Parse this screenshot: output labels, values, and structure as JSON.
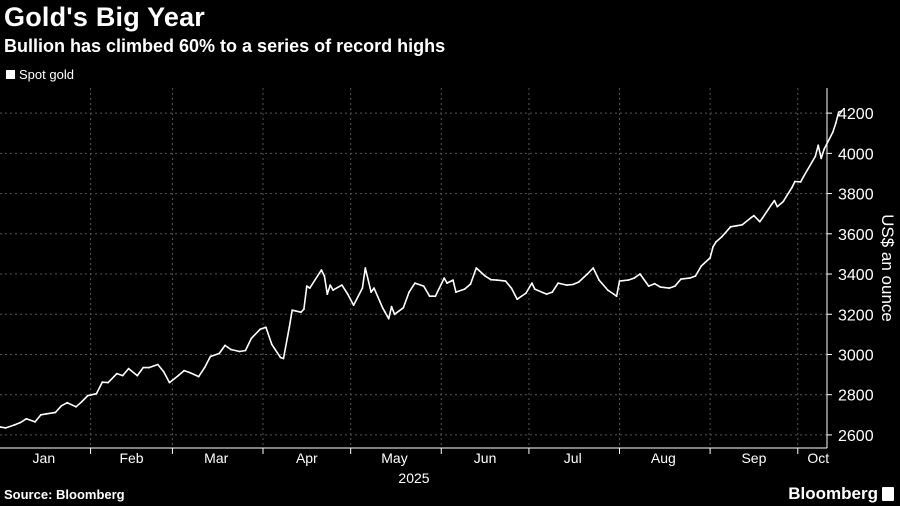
{
  "header": {
    "title": "Gold's Big Year",
    "subtitle": "Bullion has climbed 60% to a series of record highs"
  },
  "footer": {
    "source": "Source: Bloomberg",
    "brand": "Bloomberg",
    "brand_icon": "bloomberg-chart-icon"
  },
  "colors": {
    "background": "#000000",
    "line": "#ffffff",
    "grid": "#555555",
    "text": "#ffffff"
  },
  "chart_data": {
    "type": "line",
    "title": "Gold's Big Year",
    "subtitle": "Bullion has climbed 60% to a series of record highs",
    "xlabel": "2025",
    "ylabel": "US$ an ounce",
    "y_axis_side": "right",
    "ylim": [
      2535,
      4325
    ],
    "yticks": [
      2600,
      2800,
      3000,
      3200,
      3400,
      3600,
      3800,
      4000,
      4200
    ],
    "xlim": [
      "2025-01-01",
      "2025-10-11"
    ],
    "x_tick_labels": [
      {
        "date": "2025-01-16",
        "label": "Jan"
      },
      {
        "date": "2025-02-15",
        "label": "Feb"
      },
      {
        "date": "2025-03-16",
        "label": "Mar"
      },
      {
        "date": "2025-04-16",
        "label": "Apr"
      },
      {
        "date": "2025-05-16",
        "label": "May"
      },
      {
        "date": "2025-06-16",
        "label": "Jun"
      },
      {
        "date": "2025-07-16",
        "label": "Jul"
      },
      {
        "date": "2025-08-16",
        "label": "Aug"
      },
      {
        "date": "2025-09-16",
        "label": "Sep"
      },
      {
        "date": "2025-10-08",
        "label": "Oct"
      }
    ],
    "x_grid_dates": [
      "2025-02-01",
      "2025-03-01",
      "2025-04-01",
      "2025-05-01",
      "2025-06-01",
      "2025-07-01",
      "2025-08-01",
      "2025-09-01",
      "2025-10-01"
    ],
    "grid": true,
    "legend": "top-left",
    "series": [
      {
        "name": "Spot gold",
        "points": [
          [
            "2025-01-01",
            2640
          ],
          [
            "2025-01-03",
            2635
          ],
          [
            "2025-01-06",
            2650
          ],
          [
            "2025-01-08",
            2662
          ],
          [
            "2025-01-10",
            2680
          ],
          [
            "2025-01-13",
            2665
          ],
          [
            "2025-01-15",
            2700
          ],
          [
            "2025-01-17",
            2705
          ],
          [
            "2025-01-20",
            2712
          ],
          [
            "2025-01-22",
            2745
          ],
          [
            "2025-01-24",
            2760
          ],
          [
            "2025-01-27",
            2740
          ],
          [
            "2025-01-29",
            2765
          ],
          [
            "2025-01-31",
            2795
          ],
          [
            "2025-02-03",
            2805
          ],
          [
            "2025-02-05",
            2862
          ],
          [
            "2025-02-07",
            2860
          ],
          [
            "2025-02-10",
            2905
          ],
          [
            "2025-02-12",
            2895
          ],
          [
            "2025-02-14",
            2930
          ],
          [
            "2025-02-17",
            2895
          ],
          [
            "2025-02-19",
            2935
          ],
          [
            "2025-02-21",
            2935
          ],
          [
            "2025-02-24",
            2950
          ],
          [
            "2025-02-26",
            2915
          ],
          [
            "2025-02-28",
            2860
          ],
          [
            "2025-03-03",
            2895
          ],
          [
            "2025-03-05",
            2920
          ],
          [
            "2025-03-07",
            2910
          ],
          [
            "2025-03-10",
            2890
          ],
          [
            "2025-03-12",
            2935
          ],
          [
            "2025-03-14",
            2990
          ],
          [
            "2025-03-17",
            3005
          ],
          [
            "2025-03-19",
            3045
          ],
          [
            "2025-03-21",
            3025
          ],
          [
            "2025-03-24",
            3015
          ],
          [
            "2025-03-26",
            3020
          ],
          [
            "2025-03-28",
            3080
          ],
          [
            "2025-03-31",
            3125
          ],
          [
            "2025-04-02",
            3135
          ],
          [
            "2025-04-04",
            3050
          ],
          [
            "2025-04-07",
            2985
          ],
          [
            "2025-04-08",
            2980
          ],
          [
            "2025-04-10",
            3135
          ],
          [
            "2025-04-11",
            3220
          ],
          [
            "2025-04-14",
            3210
          ],
          [
            "2025-04-15",
            3225
          ],
          [
            "2025-04-16",
            3340
          ],
          [
            "2025-04-17",
            3330
          ],
          [
            "2025-04-21",
            3420
          ],
          [
            "2025-04-22",
            3390
          ],
          [
            "2025-04-23",
            3300
          ],
          [
            "2025-04-24",
            3345
          ],
          [
            "2025-04-25",
            3320
          ],
          [
            "2025-04-28",
            3345
          ],
          [
            "2025-04-30",
            3300
          ],
          [
            "2025-05-02",
            3245
          ],
          [
            "2025-05-05",
            3330
          ],
          [
            "2025-05-06",
            3430
          ],
          [
            "2025-05-08",
            3310
          ],
          [
            "2025-05-09",
            3330
          ],
          [
            "2025-05-12",
            3230
          ],
          [
            "2025-05-14",
            3178
          ],
          [
            "2025-05-15",
            3238
          ],
          [
            "2025-05-16",
            3200
          ],
          [
            "2025-05-19",
            3232
          ],
          [
            "2025-05-21",
            3310
          ],
          [
            "2025-05-23",
            3355
          ],
          [
            "2025-05-26",
            3340
          ],
          [
            "2025-05-28",
            3290
          ],
          [
            "2025-05-30",
            3290
          ],
          [
            "2025-06-02",
            3380
          ],
          [
            "2025-06-03",
            3355
          ],
          [
            "2025-06-05",
            3370
          ],
          [
            "2025-06-06",
            3310
          ],
          [
            "2025-06-09",
            3325
          ],
          [
            "2025-06-11",
            3350
          ],
          [
            "2025-06-13",
            3430
          ],
          [
            "2025-06-16",
            3390
          ],
          [
            "2025-06-18",
            3372
          ],
          [
            "2025-06-20",
            3370
          ],
          [
            "2025-06-23",
            3365
          ],
          [
            "2025-06-25",
            3330
          ],
          [
            "2025-06-27",
            3275
          ],
          [
            "2025-06-30",
            3305
          ],
          [
            "2025-07-02",
            3355
          ],
          [
            "2025-07-03",
            3325
          ],
          [
            "2025-07-07",
            3300
          ],
          [
            "2025-07-09",
            3310
          ],
          [
            "2025-07-11",
            3355
          ],
          [
            "2025-07-14",
            3345
          ],
          [
            "2025-07-16",
            3348
          ],
          [
            "2025-07-18",
            3360
          ],
          [
            "2025-07-21",
            3400
          ],
          [
            "2025-07-23",
            3430
          ],
          [
            "2025-07-25",
            3370
          ],
          [
            "2025-07-28",
            3320
          ],
          [
            "2025-07-30",
            3300
          ],
          [
            "2025-07-31",
            3290
          ],
          [
            "2025-08-01",
            3365
          ],
          [
            "2025-08-04",
            3370
          ],
          [
            "2025-08-06",
            3380
          ],
          [
            "2025-08-08",
            3400
          ],
          [
            "2025-08-11",
            3340
          ],
          [
            "2025-08-13",
            3352
          ],
          [
            "2025-08-15",
            3335
          ],
          [
            "2025-08-18",
            3330
          ],
          [
            "2025-08-20",
            3340
          ],
          [
            "2025-08-22",
            3375
          ],
          [
            "2025-08-25",
            3380
          ],
          [
            "2025-08-27",
            3390
          ],
          [
            "2025-08-29",
            3440
          ],
          [
            "2025-09-01",
            3480
          ],
          [
            "2025-09-02",
            3535
          ],
          [
            "2025-09-03",
            3560
          ],
          [
            "2025-09-05",
            3585
          ],
          [
            "2025-09-08",
            3635
          ],
          [
            "2025-09-10",
            3640
          ],
          [
            "2025-09-12",
            3645
          ],
          [
            "2025-09-15",
            3680
          ],
          [
            "2025-09-16",
            3690
          ],
          [
            "2025-09-18",
            3660
          ],
          [
            "2025-09-19",
            3680
          ],
          [
            "2025-09-22",
            3745
          ],
          [
            "2025-09-23",
            3765
          ],
          [
            "2025-09-24",
            3735
          ],
          [
            "2025-09-26",
            3760
          ],
          [
            "2025-09-29",
            3830
          ],
          [
            "2025-09-30",
            3860
          ],
          [
            "2025-10-02",
            3858
          ],
          [
            "2025-10-03",
            3885
          ],
          [
            "2025-10-06",
            3960
          ],
          [
            "2025-10-07",
            3985
          ],
          [
            "2025-10-08",
            4040
          ],
          [
            "2025-10-09",
            3975
          ],
          [
            "2025-10-10",
            4020
          ],
          [
            "2025-10-13",
            4105
          ],
          [
            "2025-10-14",
            4150
          ],
          [
            "2025-10-15",
            4205
          ],
          [
            "2025-10-16",
            4210
          ]
        ]
      }
    ]
  }
}
